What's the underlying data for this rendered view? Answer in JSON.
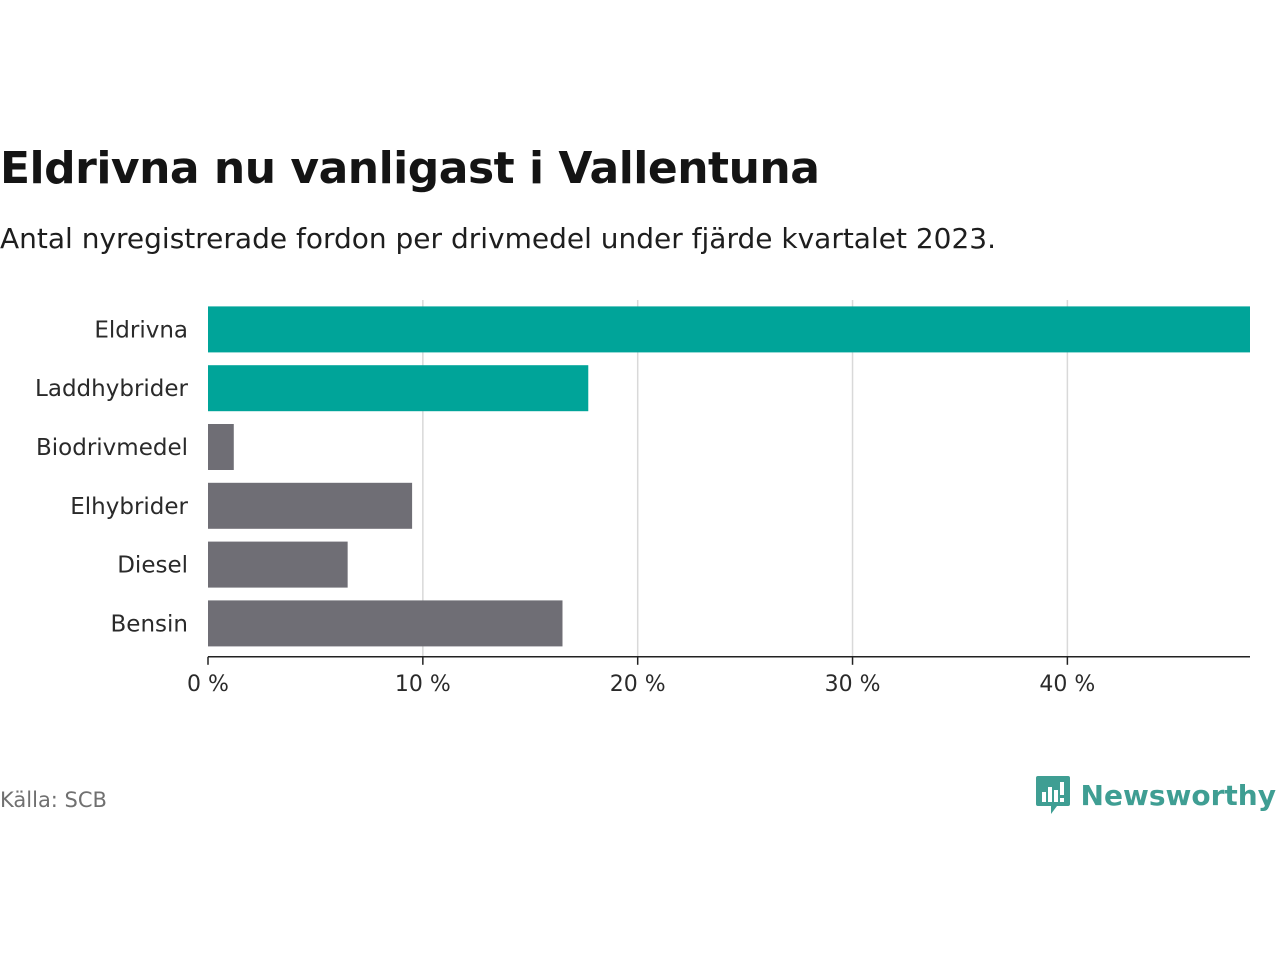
{
  "title": "Eldrivna nu vanligast i Vallentuna",
  "subtitle": "Antal nyregistrerade fordon per drivmedel under fjärde kvartalet 2023.",
  "source": "Källa: SCB",
  "brand": "Newsworthy",
  "colors": {
    "highlight": "#00a499",
    "neutral": "#6f6e75",
    "grid": "#d9d9d9",
    "axis": "#222222",
    "brand": "#3f9e93"
  },
  "chart_data": {
    "type": "bar",
    "orientation": "horizontal",
    "categories": [
      "Eldrivna",
      "Laddhybrider",
      "Biodrivmedel",
      "Elhybrider",
      "Diesel",
      "Bensin"
    ],
    "values": [
      48.5,
      17.7,
      1.2,
      9.5,
      6.5,
      16.5
    ],
    "highlighted": [
      true,
      true,
      false,
      false,
      false,
      false
    ],
    "unit": "%",
    "xlim": [
      0,
      48.5
    ],
    "xticks": [
      0,
      10,
      20,
      30,
      40
    ],
    "xtick_labels": [
      "0 %",
      "10 %",
      "20 %",
      "30 %",
      "40 %"
    ],
    "grid": true
  }
}
